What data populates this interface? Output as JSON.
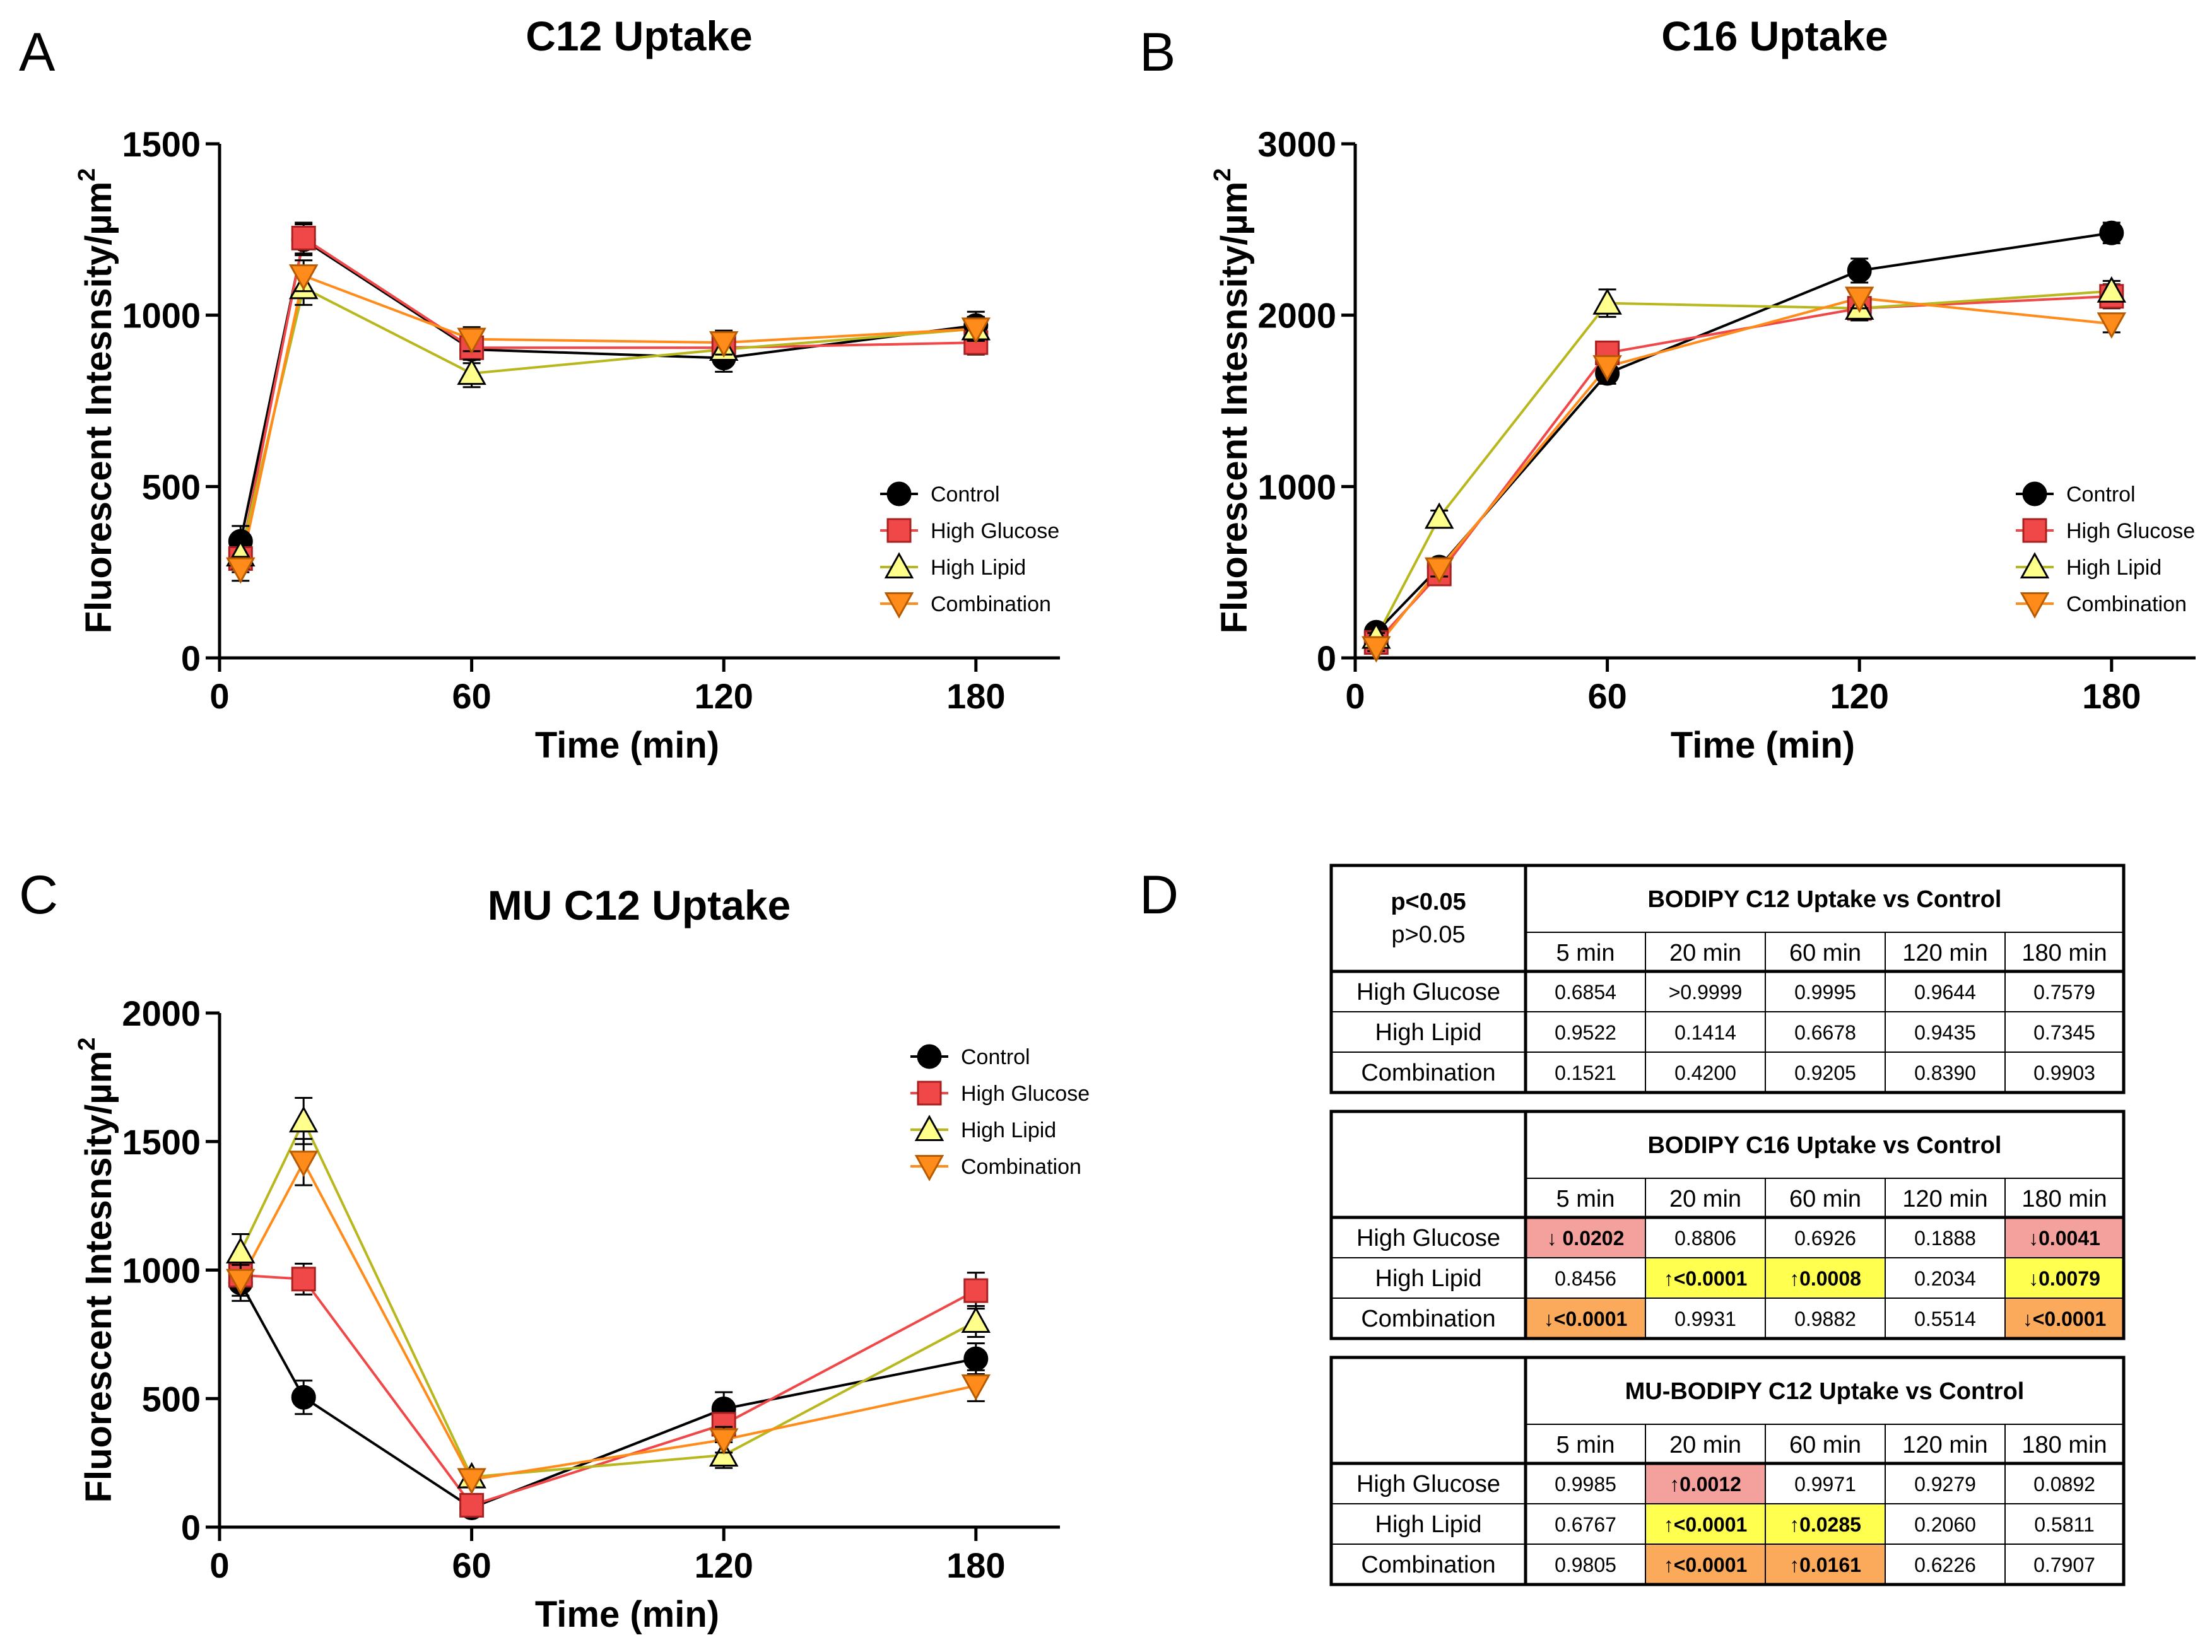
{
  "panels": [
    {
      "letter": "A",
      "title": "C12 Uptake"
    },
    {
      "letter": "B",
      "title": "C16 Uptake"
    },
    {
      "letter": "C",
      "title": "MU C12 Uptake"
    },
    {
      "letter": "D"
    }
  ],
  "colors": {
    "Control": {
      "fill": "#000000",
      "stroke": "#000000",
      "line": "#000000"
    },
    "High Glucose": {
      "fill": "#F04848",
      "stroke": "#A82020",
      "line": "#F04848"
    },
    "High Lipid": {
      "fill": "#FFFF8C",
      "stroke": "#000000",
      "line": "#B8B81E"
    },
    "Combination": {
      "fill": "#FF8C1A",
      "stroke": "#B85A00",
      "line": "#FF8C1A"
    },
    "sig_down": "#F4A09C",
    "sig_up": "#FFFF50",
    "sig_combo": "#FAAA5A"
  },
  "chart_data": [
    {
      "type": "line",
      "title": "C12 Uptake",
      "xlabel": "Time (min)",
      "ylabel": "Fluorescent Intesnsity/µm",
      "ylabel_sup": "2",
      "xlim": [
        0,
        200
      ],
      "ylim": [
        0,
        1500
      ],
      "xticks": [
        0,
        60,
        120,
        180
      ],
      "yticks": [
        0,
        500,
        1000,
        1500
      ],
      "x": [
        5,
        20,
        60,
        120,
        180
      ],
      "series": [
        {
          "name": "Control",
          "marker": "circle",
          "values": [
            340,
            1220,
            900,
            875,
            970
          ],
          "errors": [
            45,
            45,
            40,
            40,
            40
          ]
        },
        {
          "name": "High Glucose",
          "marker": "square",
          "values": [
            290,
            1225,
            905,
            905,
            920
          ],
          "errors": [
            40,
            45,
            35,
            35,
            35
          ]
        },
        {
          "name": "High Lipid",
          "marker": "triangle-up",
          "values": [
            300,
            1080,
            830,
            900,
            960
          ],
          "errors": [
            40,
            50,
            40,
            35,
            35
          ]
        },
        {
          "name": "Combination",
          "marker": "triangle-down",
          "values": [
            260,
            1115,
            930,
            920,
            960
          ],
          "errors": [
            35,
            45,
            35,
            35,
            35
          ]
        }
      ]
    },
    {
      "type": "line",
      "title": "C16 Uptake",
      "xlabel": "Time (min)",
      "ylabel": "Fluorescent Intesnsity/µm",
      "ylabel_sup": "2",
      "xlim": [
        0,
        200
      ],
      "ylim": [
        0,
        3000
      ],
      "xticks": [
        0,
        60,
        120,
        180
      ],
      "yticks": [
        0,
        1000,
        2000,
        3000
      ],
      "x": [
        5,
        20,
        60,
        120,
        180
      ],
      "series": [
        {
          "name": "Control",
          "marker": "circle",
          "values": [
            150,
            530,
            1660,
            2260,
            2480
          ],
          "errors": [
            30,
            50,
            60,
            70,
            60
          ]
        },
        {
          "name": "High Glucose",
          "marker": "square",
          "values": [
            90,
            490,
            1780,
            2040,
            2110
          ],
          "errors": [
            25,
            45,
            60,
            70,
            70
          ]
        },
        {
          "name": "High Lipid",
          "marker": "triangle-up",
          "values": [
            120,
            820,
            2070,
            2040,
            2140
          ],
          "errors": [
            25,
            40,
            80,
            70,
            60
          ]
        },
        {
          "name": "Combination",
          "marker": "triangle-down",
          "values": [
            60,
            520,
            1700,
            2100,
            1950
          ],
          "errors": [
            20,
            45,
            60,
            60,
            50
          ]
        }
      ]
    },
    {
      "type": "line",
      "title": "MU C12 Uptake",
      "xlabel": "Time (min)",
      "ylabel": "Fluorescent Intesnsity/µm",
      "ylabel_sup": "2",
      "xlim": [
        0,
        200
      ],
      "ylim": [
        0,
        2000
      ],
      "xticks": [
        0,
        60,
        120,
        180
      ],
      "yticks": [
        0,
        500,
        1000,
        1500,
        2000
      ],
      "x": [
        5,
        20,
        60,
        120,
        180
      ],
      "series": [
        {
          "name": "Control",
          "marker": "circle",
          "values": [
            950,
            505,
            75,
            460,
            655
          ],
          "errors": [
            70,
            65,
            30,
            65,
            60
          ]
        },
        {
          "name": "High Glucose",
          "marker": "square",
          "values": [
            980,
            965,
            85,
            400,
            920
          ],
          "errors": [
            60,
            60,
            30,
            60,
            70
          ]
        },
        {
          "name": "High Lipid",
          "marker": "triangle-up",
          "values": [
            1070,
            1580,
            195,
            280,
            800
          ],
          "errors": [
            70,
            90,
            30,
            50,
            60
          ]
        },
        {
          "name": "Combination",
          "marker": "triangle-down",
          "values": [
            960,
            1420,
            185,
            340,
            550
          ],
          "errors": [
            60,
            90,
            30,
            50,
            60
          ]
        }
      ]
    },
    {
      "type": "table",
      "legend": {
        "significant": "p<0.05",
        "not_significant": "p>0.05"
      },
      "columns": [
        "5 min",
        "20 min",
        "60 min",
        "120 min",
        "180 min"
      ],
      "row_labels": [
        "High Glucose",
        "High Lipid",
        "Combination"
      ],
      "blocks": [
        {
          "title": "BODIPY C12 Uptake vs Control",
          "rows": [
            [
              {
                "v": "0.6854"
              },
              {
                "v": ">0.9999"
              },
              {
                "v": "0.9995"
              },
              {
                "v": "0.9644"
              },
              {
                "v": "0.7579"
              }
            ],
            [
              {
                "v": "0.9522"
              },
              {
                "v": "0.1414"
              },
              {
                "v": "0.6678"
              },
              {
                "v": "0.9435"
              },
              {
                "v": "0.7345"
              }
            ],
            [
              {
                "v": "0.1521"
              },
              {
                "v": "0.4200"
              },
              {
                "v": "0.9205"
              },
              {
                "v": "0.8390"
              },
              {
                "v": "0.9903"
              }
            ]
          ]
        },
        {
          "title": "BODIPY C16 Uptake vs Control",
          "rows": [
            [
              {
                "v": "↓ 0.0202",
                "hl": "sig_down"
              },
              {
                "v": "0.8806"
              },
              {
                "v": "0.6926"
              },
              {
                "v": "0.1888"
              },
              {
                "v": "↓0.0041",
                "hl": "sig_down"
              }
            ],
            [
              {
                "v": "0.8456"
              },
              {
                "v": "↑<0.0001",
                "hl": "sig_up"
              },
              {
                "v": "↑0.0008",
                "hl": "sig_up"
              },
              {
                "v": "0.2034"
              },
              {
                "v": "↓0.0079",
                "hl": "sig_up"
              }
            ],
            [
              {
                "v": "↓<0.0001",
                "hl": "sig_combo"
              },
              {
                "v": "0.9931"
              },
              {
                "v": "0.9882"
              },
              {
                "v": "0.5514"
              },
              {
                "v": "↓<0.0001",
                "hl": "sig_combo"
              }
            ]
          ]
        },
        {
          "title": "MU-BODIPY C12 Uptake vs Control",
          "rows": [
            [
              {
                "v": "0.9985"
              },
              {
                "v": "↑0.0012",
                "hl": "sig_down"
              },
              {
                "v": "0.9971"
              },
              {
                "v": "0.9279"
              },
              {
                "v": "0.0892"
              }
            ],
            [
              {
                "v": "0.6767"
              },
              {
                "v": "↑<0.0001",
                "hl": "sig_up"
              },
              {
                "v": "↑0.0285",
                "hl": "sig_up"
              },
              {
                "v": "0.2060"
              },
              {
                "v": "0.5811"
              }
            ],
            [
              {
                "v": "0.9805"
              },
              {
                "v": "↑<0.0001",
                "hl": "sig_combo"
              },
              {
                "v": "↑0.0161",
                "hl": "sig_combo"
              },
              {
                "v": "0.6226"
              },
              {
                "v": "0.7907"
              }
            ]
          ]
        }
      ]
    }
  ]
}
